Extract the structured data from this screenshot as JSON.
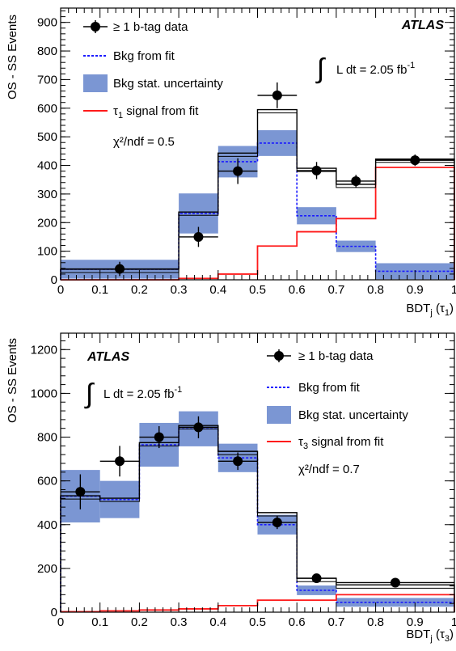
{
  "chart_data": [
    {
      "type": "bar",
      "panel": "top",
      "edges": [
        0,
        0.3,
        0.4,
        0.5,
        0.6,
        0.7,
        0.8,
        1.0
      ],
      "xlim": [
        0,
        1
      ],
      "ylim": [
        0,
        950
      ],
      "xticks": [
        0,
        0.1,
        0.2,
        0.3,
        0.4,
        0.5,
        0.6,
        0.7,
        0.8,
        0.9,
        1
      ],
      "xtick_labels": [
        "0",
        "0.1",
        "0.2",
        "0.3",
        "0.4",
        "0.5",
        "0.6",
        "0.7",
        "0.8",
        "0.9",
        "1"
      ],
      "yticks": [
        0,
        100,
        200,
        300,
        400,
        500,
        600,
        700,
        800,
        900
      ],
      "ytick_labels": [
        "0",
        "100",
        "200",
        "300",
        "400",
        "500",
        "600",
        "700",
        "800",
        "900"
      ],
      "xlabel_main": "BDT",
      "xlabel_sub": "j",
      "xlabel_paren_open": " (τ",
      "xlabel_paren_sub": "1",
      "xlabel_paren_close": ")",
      "ylabel": "OS - SS Events",
      "atlas_label": "ATLAS",
      "lumi_text": "L dt = 2.05 fb",
      "lumi_sup": "-1",
      "chi2_text": "χ²/ndf = 0.5",
      "legend": {
        "data": "≥ 1 b-tag data",
        "bkg": "Bkg from fit",
        "unc": "Bkg stat. uncertainty",
        "sig_prefix": "τ",
        "sig_sub": "1",
        "sig_suffix": " signal from fit"
      },
      "data_points": [
        {
          "x": 0.15,
          "y": 38,
          "yerr": 25,
          "xerr": 0.15
        },
        {
          "x": 0.35,
          "y": 150,
          "yerr": 35,
          "xerr": 0.05
        },
        {
          "x": 0.45,
          "y": 380,
          "yerr": 45,
          "xerr": 0.05
        },
        {
          "x": 0.55,
          "y": 645,
          "yerr": 45,
          "xerr": 0.05
        },
        {
          "x": 0.65,
          "y": 382,
          "yerr": 30,
          "xerr": 0.05
        },
        {
          "x": 0.75,
          "y": 345,
          "yerr": 22,
          "xerr": 0.05
        },
        {
          "x": 0.9,
          "y": 418,
          "yerr": 20,
          "xerr": 0.1
        }
      ],
      "bkg": [
        37,
        232,
        413,
        478,
        224,
        117,
        30
      ],
      "bkg_unc": [
        33,
        70,
        55,
        45,
        30,
        20,
        28
      ],
      "signal": [
        0,
        5,
        20,
        118,
        168,
        214,
        393
      ],
      "total": [
        37,
        237,
        443,
        595,
        390,
        334,
        422
      ],
      "colors": {
        "bkg": "#1a1aff",
        "unc": "#7b96d3",
        "signal": "#ff1a1a",
        "total": "#000000",
        "data": "#000000"
      }
    },
    {
      "type": "bar",
      "panel": "bottom",
      "edges": [
        0,
        0.1,
        0.2,
        0.3,
        0.4,
        0.5,
        0.6,
        0.7,
        1.0
      ],
      "xlim": [
        0,
        1
      ],
      "ylim": [
        0,
        1275
      ],
      "xticks": [
        0,
        0.1,
        0.2,
        0.3,
        0.4,
        0.5,
        0.6,
        0.7,
        0.8,
        0.9,
        1
      ],
      "xtick_labels": [
        "0",
        "0.1",
        "0.2",
        "0.3",
        "0.4",
        "0.5",
        "0.6",
        "0.7",
        "0.8",
        "0.9",
        "1"
      ],
      "yticks": [
        0,
        200,
        400,
        600,
        800,
        1000,
        1200
      ],
      "ytick_labels": [
        "0",
        "200",
        "400",
        "600",
        "800",
        "1000",
        "1200"
      ],
      "xlabel_main": "BDT",
      "xlabel_sub": "j",
      "xlabel_paren_open": " (τ",
      "xlabel_paren_sub": "3",
      "xlabel_paren_close": ")",
      "ylabel": "OS - SS Events",
      "atlas_label": "ATLAS",
      "lumi_text": "L dt = 2.05 fb",
      "lumi_sup": "-1",
      "chi2_text": "χ²/ndf = 0.7",
      "legend": {
        "data": "≥ 1 b-tag data",
        "bkg": "Bkg from fit",
        "unc": "Bkg stat. uncertainty",
        "sig_prefix": "τ",
        "sig_sub": "3",
        "sig_suffix": " signal from fit"
      },
      "data_points": [
        {
          "x": 0.05,
          "y": 550,
          "yerr": 80,
          "xerr": 0.05
        },
        {
          "x": 0.15,
          "y": 690,
          "yerr": 70,
          "xerr": 0.05
        },
        {
          "x": 0.25,
          "y": 800,
          "yerr": 50,
          "xerr": 0.05
        },
        {
          "x": 0.35,
          "y": 845,
          "yerr": 50,
          "xerr": 0.05
        },
        {
          "x": 0.45,
          "y": 690,
          "yerr": 40,
          "xerr": 0.05
        },
        {
          "x": 0.55,
          "y": 410,
          "yerr": 30,
          "xerr": 0.05
        },
        {
          "x": 0.65,
          "y": 155,
          "yerr": 15,
          "xerr": 0.05
        },
        {
          "x": 0.85,
          "y": 135,
          "yerr": 10,
          "xerr": 0.15
        }
      ],
      "bkg": [
        530,
        515,
        765,
        838,
        705,
        400,
        100,
        45
      ],
      "bkg_unc": [
        120,
        85,
        100,
        80,
        65,
        45,
        22,
        20
      ],
      "signal": [
        2,
        6,
        10,
        15,
        30,
        55,
        55,
        80
      ],
      "total": [
        532,
        521,
        775,
        853,
        735,
        455,
        155,
        125
      ],
      "colors": {
        "bkg": "#1a1aff",
        "unc": "#7b96d3",
        "signal": "#ff1a1a",
        "total": "#000000",
        "data": "#000000"
      }
    }
  ]
}
